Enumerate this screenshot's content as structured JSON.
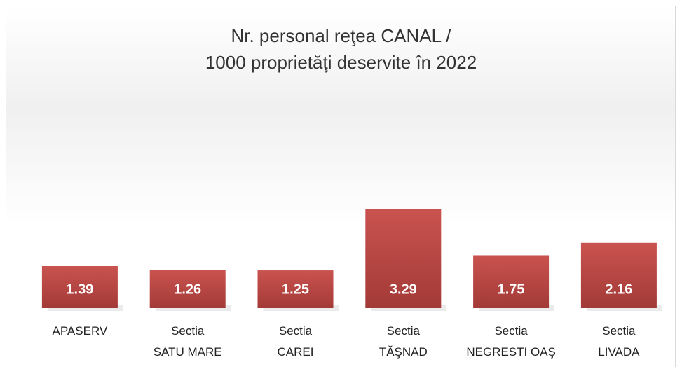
{
  "chart_data": {
    "type": "bar",
    "title": "Nr. personal reţea CANAL /\n1000 proprietăţi deservite în 2022",
    "categories": [
      "APASERV",
      "Sectia\nSATU MARE",
      "Sectia\nCAREI",
      "Sectia\nTĂŞNAD",
      "Sectia\nNEGRESTI OAŞ",
      "Sectia\nLIVADA"
    ],
    "values": [
      1.39,
      1.26,
      1.25,
      3.29,
      1.75,
      2.16
    ],
    "color": "#c0504d"
  }
}
